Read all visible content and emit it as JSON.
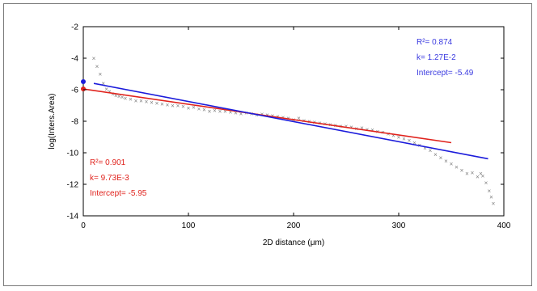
{
  "chart_data": {
    "type": "scatter",
    "xlabel": "2D distance (μm)",
    "ylabel": "log(Inters.Area)",
    "xlim": [
      0,
      400
    ],
    "ylim": [
      -14,
      -2
    ],
    "xticks": [
      0,
      100,
      200,
      300,
      400
    ],
    "yticks": [
      -2,
      -4,
      -6,
      -8,
      -10,
      -12,
      -14
    ],
    "grid": false,
    "series": [
      {
        "kind": "points",
        "color": "#7f7f7f",
        "points": [
          [
            10,
            -4.0
          ],
          [
            13,
            -4.5
          ],
          [
            16,
            -5.0
          ],
          [
            19,
            -5.6
          ],
          [
            22,
            -5.95
          ],
          [
            25,
            -6.1
          ],
          [
            28,
            -6.25
          ],
          [
            31,
            -6.35
          ],
          [
            34,
            -6.4
          ],
          [
            37,
            -6.45
          ],
          [
            40,
            -6.55
          ],
          [
            45,
            -6.6
          ],
          [
            50,
            -6.7
          ],
          [
            55,
            -6.7
          ],
          [
            60,
            -6.75
          ],
          [
            65,
            -6.8
          ],
          [
            70,
            -6.85
          ],
          [
            75,
            -6.9
          ],
          [
            80,
            -6.95
          ],
          [
            85,
            -7.0
          ],
          [
            90,
            -7.0
          ],
          [
            95,
            -7.05
          ],
          [
            100,
            -7.15
          ],
          [
            105,
            -7.1
          ],
          [
            110,
            -7.2
          ],
          [
            115,
            -7.25
          ],
          [
            120,
            -7.35
          ],
          [
            125,
            -7.3
          ],
          [
            130,
            -7.35
          ],
          [
            135,
            -7.35
          ],
          [
            140,
            -7.4
          ],
          [
            145,
            -7.45
          ],
          [
            150,
            -7.5
          ],
          [
            155,
            -7.45
          ],
          [
            160,
            -7.5
          ],
          [
            165,
            -7.6
          ],
          [
            170,
            -7.55
          ],
          [
            175,
            -7.6
          ],
          [
            180,
            -7.65
          ],
          [
            185,
            -7.7
          ],
          [
            190,
            -7.75
          ],
          [
            195,
            -7.8
          ],
          [
            200,
            -7.9
          ],
          [
            205,
            -7.8
          ],
          [
            210,
            -7.95
          ],
          [
            215,
            -8.0
          ],
          [
            220,
            -8.05
          ],
          [
            225,
            -8.1
          ],
          [
            230,
            -8.15
          ],
          [
            235,
            -8.2
          ],
          [
            240,
            -8.25
          ],
          [
            245,
            -8.3
          ],
          [
            250,
            -8.3
          ],
          [
            255,
            -8.35
          ],
          [
            260,
            -8.45
          ],
          [
            265,
            -8.4
          ],
          [
            270,
            -8.5
          ],
          [
            275,
            -8.55
          ],
          [
            280,
            -8.65
          ],
          [
            285,
            -8.7
          ],
          [
            290,
            -8.8
          ],
          [
            295,
            -8.9
          ],
          [
            300,
            -9.0
          ],
          [
            305,
            -9.1
          ],
          [
            310,
            -9.2
          ],
          [
            315,
            -9.35
          ],
          [
            320,
            -9.5
          ],
          [
            325,
            -9.7
          ],
          [
            330,
            -9.85
          ],
          [
            335,
            -10.1
          ],
          [
            340,
            -10.3
          ],
          [
            345,
            -10.5
          ],
          [
            350,
            -10.7
          ],
          [
            355,
            -10.9
          ],
          [
            360,
            -11.1
          ],
          [
            365,
            -11.3
          ],
          [
            370,
            -11.25
          ],
          [
            375,
            -11.5
          ],
          [
            378,
            -11.3
          ],
          [
            380,
            -11.45
          ],
          [
            383,
            -11.9
          ],
          [
            386,
            -12.4
          ],
          [
            388,
            -12.8
          ],
          [
            390,
            -13.2
          ]
        ]
      },
      {
        "kind": "line",
        "color": "#e0231d",
        "x": [
          0,
          350
        ],
        "y": [
          -5.95,
          -9.36
        ]
      },
      {
        "kind": "line",
        "color": "#1c1cdb",
        "x": [
          10,
          385
        ],
        "y": [
          -5.6,
          -10.38
        ]
      },
      {
        "kind": "marker",
        "color": "#e0231d",
        "x": 0,
        "y": -5.95
      },
      {
        "kind": "marker",
        "color": "#1c1cdb",
        "x": 0,
        "y": -5.49
      }
    ],
    "annotations": {
      "blue": {
        "color": "#3a3ae0",
        "r2": "R²= 0.874",
        "k": "k= 1.27E-2",
        "intercept": "Intercept= -5.49"
      },
      "red": {
        "color": "#e0231d",
        "r2": "R²= 0.901",
        "k": "k= 9.73E-3",
        "intercept": "Intercept= -5.95"
      }
    }
  }
}
